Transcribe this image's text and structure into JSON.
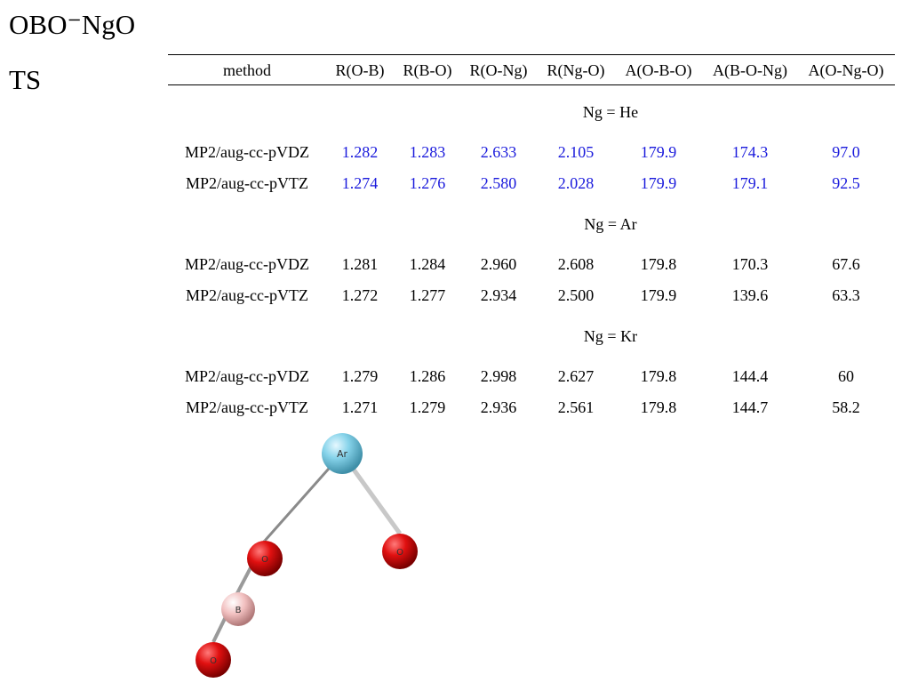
{
  "title_species": "OBO⁻NgO",
  "title_state": "TS",
  "columns": [
    "method",
    "R(O-B)",
    "R(B-O)",
    "R(O-Ng)",
    "R(Ng-O)",
    "A(O-B-O)",
    "A(B-O-Ng)",
    "A(O-Ng-O)"
  ],
  "highlight_color": "#1a1adc",
  "groups": [
    {
      "label": "Ng = He",
      "highlight": true,
      "rows": [
        [
          "MP2/aug-cc-pVDZ",
          "1.282",
          "1.283",
          "2.633",
          "2.105",
          "179.9",
          "174.3",
          "97.0"
        ],
        [
          "MP2/aug-cc-pVTZ",
          "1.274",
          "1.276",
          "2.580",
          "2.028",
          "179.9",
          "179.1",
          "92.5"
        ]
      ]
    },
    {
      "label": "Ng = Ar",
      "highlight": false,
      "rows": [
        [
          "MP2/aug-cc-pVDZ",
          "1.281",
          "1.284",
          "2.960",
          "2.608",
          "179.8",
          "170.3",
          "67.6"
        ],
        [
          "MP2/aug-cc-pVTZ",
          "1.272",
          "1.277",
          "2.934",
          "2.500",
          "179.9",
          "139.6",
          "63.3"
        ]
      ]
    },
    {
      "label": "Ng = Kr",
      "highlight": false,
      "rows": [
        [
          "MP2/aug-cc-pVDZ",
          "1.279",
          "1.286",
          "2.998",
          "2.627",
          "179.8",
          "144.4",
          "60"
        ],
        [
          "MP2/aug-cc-pVTZ",
          "1.271",
          "1.279",
          "2.936",
          "2.561",
          "179.8",
          "144.7",
          "58.2"
        ]
      ]
    }
  ],
  "molecule": {
    "atoms": [
      {
        "label": "Ar",
        "color": "#7fd0e6"
      },
      {
        "label": "O",
        "color": "#d40000"
      },
      {
        "label": "O",
        "color": "#d40000"
      },
      {
        "label": "B",
        "color": "#f2b8b8"
      },
      {
        "label": "O",
        "color": "#d40000"
      }
    ]
  }
}
